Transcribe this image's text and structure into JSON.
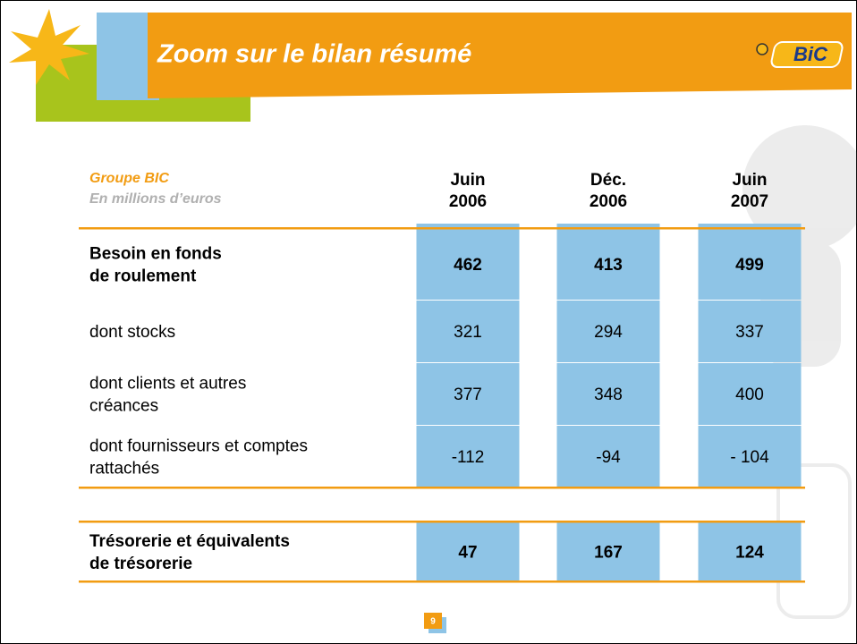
{
  "header": {
    "title": "Zoom sur le bilan résumé",
    "logo": "BiC"
  },
  "table": {
    "caption": [
      "Groupe BIC",
      "En millions d’euros"
    ],
    "columns": [
      [
        "Juin",
        "2006"
      ],
      [
        "Déc.",
        "2006"
      ],
      [
        "Juin",
        "2007"
      ]
    ],
    "rows": [
      {
        "label": [
          "Besoin en fonds",
          "de roulement"
        ],
        "values": [
          "462",
          "413",
          "499"
        ],
        "bold": true
      },
      {
        "label": [
          "dont stocks"
        ],
        "values": [
          "321",
          "294",
          "337"
        ],
        "bold": false
      },
      {
        "label": [
          "dont clients et autres",
          "créances"
        ],
        "values": [
          "377",
          "348",
          "400"
        ],
        "bold": false
      },
      {
        "label": [
          "dont fournisseurs et comptes",
          "rattachés"
        ],
        "values": [
          "-112",
          "-94",
          "- 104"
        ],
        "bold": false
      },
      {
        "label": [
          "Trésorerie et équivalents",
          "de trésorerie"
        ],
        "values": [
          "47",
          "167",
          "124"
        ],
        "bold": true
      }
    ]
  },
  "page_number": "9"
}
